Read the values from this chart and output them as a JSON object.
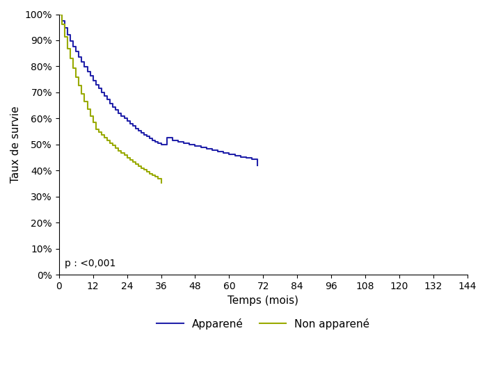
{
  "xlabel": "Temps (mois)",
  "ylabel": "Taux de survie",
  "xlim": [
    0,
    144
  ],
  "ylim": [
    0,
    1.0
  ],
  "xticks": [
    0,
    12,
    24,
    36,
    48,
    60,
    72,
    84,
    96,
    108,
    120,
    132,
    144
  ],
  "yticks": [
    0.0,
    0.1,
    0.2,
    0.3,
    0.4,
    0.5,
    0.6,
    0.7,
    0.8,
    0.9,
    1.0
  ],
  "annotation": "p : <0,001",
  "legend_labels": [
    "Apparené",
    "Non apparené"
  ],
  "color_apparen": "#2222AA",
  "color_non_app": "#99AA00",
  "line_width": 1.5,
  "curve_apparen_x": [
    0,
    1,
    2,
    3,
    4,
    5,
    6,
    7,
    8,
    9,
    10,
    11,
    12,
    13,
    14,
    15,
    16,
    17,
    18,
    19,
    20,
    21,
    22,
    23,
    24,
    25,
    26,
    27,
    28,
    29,
    30,
    31,
    32,
    33,
    34,
    35,
    36,
    38,
    40,
    42,
    44,
    46,
    48,
    50,
    52,
    54,
    56,
    58,
    60,
    62,
    64,
    66,
    68,
    70
  ],
  "curve_apparen_y": [
    1.0,
    0.974,
    0.948,
    0.922,
    0.898,
    0.876,
    0.856,
    0.836,
    0.816,
    0.798,
    0.78,
    0.763,
    0.746,
    0.73,
    0.715,
    0.7,
    0.686,
    0.672,
    0.658,
    0.645,
    0.633,
    0.621,
    0.61,
    0.6,
    0.59,
    0.58,
    0.571,
    0.562,
    0.554,
    0.546,
    0.538,
    0.531,
    0.524,
    0.517,
    0.511,
    0.505,
    0.499,
    0.527,
    0.516,
    0.51,
    0.504,
    0.499,
    0.494,
    0.489,
    0.483,
    0.478,
    0.473,
    0.468,
    0.463,
    0.458,
    0.453,
    0.448,
    0.443,
    0.42
  ],
  "curve_non_app_x": [
    0,
    1,
    2,
    3,
    4,
    5,
    6,
    7,
    8,
    9,
    10,
    11,
    12,
    13,
    14,
    15,
    16,
    17,
    18,
    19,
    20,
    21,
    22,
    23,
    24,
    25,
    26,
    27,
    28,
    29,
    30,
    31,
    32,
    33,
    34,
    35,
    36
  ],
  "curve_non_app_y": [
    1.0,
    0.96,
    0.912,
    0.869,
    0.83,
    0.793,
    0.759,
    0.726,
    0.695,
    0.665,
    0.637,
    0.61,
    0.584,
    0.559,
    0.548,
    0.537,
    0.527,
    0.516,
    0.506,
    0.496,
    0.487,
    0.477,
    0.468,
    0.459,
    0.45,
    0.441,
    0.433,
    0.425,
    0.417,
    0.41,
    0.403,
    0.396,
    0.389,
    0.383,
    0.376,
    0.37,
    0.353
  ]
}
